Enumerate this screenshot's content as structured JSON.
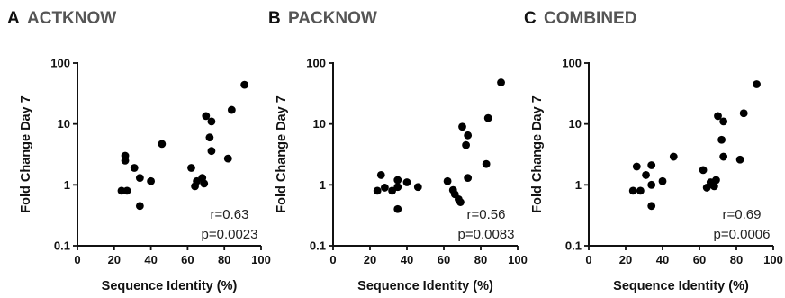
{
  "chart_data": [
    {
      "type": "scatter",
      "letter": "A",
      "title": "ACTKNOW",
      "xlabel": "Sequence Identity (%)",
      "ylabel": "Fold Change Day 7",
      "xlim": [
        0,
        100
      ],
      "ylim": [
        0.1,
        100
      ],
      "yscale": "log",
      "xticks": [
        "0",
        "20",
        "40",
        "60",
        "80",
        "100"
      ],
      "yticks": [
        "0.1",
        "1",
        "10",
        "100"
      ],
      "annotation": {
        "r": "r=0.63",
        "p": "p=0.0023"
      },
      "grid": false,
      "points": [
        {
          "x": 24,
          "y": 0.8
        },
        {
          "x": 27,
          "y": 0.8
        },
        {
          "x": 26,
          "y": 2.5
        },
        {
          "x": 26,
          "y": 3.0
        },
        {
          "x": 31,
          "y": 1.9
        },
        {
          "x": 34,
          "y": 1.3
        },
        {
          "x": 34,
          "y": 0.45
        },
        {
          "x": 40,
          "y": 1.15
        },
        {
          "x": 46,
          "y": 4.7
        },
        {
          "x": 62,
          "y": 1.9
        },
        {
          "x": 64,
          "y": 0.95
        },
        {
          "x": 65,
          "y": 1.15
        },
        {
          "x": 68,
          "y": 1.3
        },
        {
          "x": 69,
          "y": 1.05
        },
        {
          "x": 70,
          "y": 13.5
        },
        {
          "x": 72,
          "y": 6.0
        },
        {
          "x": 73,
          "y": 11.0
        },
        {
          "x": 73,
          "y": 3.6
        },
        {
          "x": 82,
          "y": 2.7
        },
        {
          "x": 84,
          "y": 17.0
        },
        {
          "x": 91,
          "y": 44.0
        }
      ]
    },
    {
      "type": "scatter",
      "letter": "B",
      "title": "PACKNOW",
      "xlabel": "Sequence Identity (%)",
      "ylabel": "Fold Change Day 7",
      "xlim": [
        0,
        100
      ],
      "ylim": [
        0.1,
        100
      ],
      "yscale": "log",
      "xticks": [
        "0",
        "20",
        "40",
        "60",
        "80",
        "100"
      ],
      "yticks": [
        "0.1",
        "1",
        "10",
        "100"
      ],
      "annotation": {
        "r": "r=0.56",
        "p": "p=0.0083"
      },
      "grid": false,
      "points": [
        {
          "x": 24,
          "y": 0.8
        },
        {
          "x": 26,
          "y": 1.45
        },
        {
          "x": 28,
          "y": 0.9
        },
        {
          "x": 32,
          "y": 0.8
        },
        {
          "x": 35,
          "y": 1.2
        },
        {
          "x": 35,
          "y": 0.92
        },
        {
          "x": 35,
          "y": 0.4
        },
        {
          "x": 40,
          "y": 1.1
        },
        {
          "x": 46,
          "y": 0.92
        },
        {
          "x": 62,
          "y": 1.15
        },
        {
          "x": 65,
          "y": 0.82
        },
        {
          "x": 66,
          "y": 0.7
        },
        {
          "x": 68,
          "y": 0.58
        },
        {
          "x": 69,
          "y": 0.52
        },
        {
          "x": 70,
          "y": 9.0
        },
        {
          "x": 72,
          "y": 4.5
        },
        {
          "x": 73,
          "y": 6.5
        },
        {
          "x": 73,
          "y": 1.3
        },
        {
          "x": 83,
          "y": 2.2
        },
        {
          "x": 84,
          "y": 12.5
        },
        {
          "x": 91,
          "y": 48.0
        }
      ]
    },
    {
      "type": "scatter",
      "letter": "C",
      "title": "COMBINED",
      "xlabel": "Sequence Identity (%)",
      "ylabel": "Fold Change Day 7",
      "xlim": [
        0,
        100
      ],
      "ylim": [
        0.1,
        100
      ],
      "yscale": "log",
      "xticks": [
        "0",
        "20",
        "40",
        "60",
        "80",
        "100"
      ],
      "yticks": [
        "0.1",
        "1",
        "10",
        "100"
      ],
      "annotation": {
        "r": "r=0.69",
        "p": "p=0.0006"
      },
      "grid": false,
      "points": [
        {
          "x": 24,
          "y": 0.8
        },
        {
          "x": 26,
          "y": 2.0
        },
        {
          "x": 28,
          "y": 0.8
        },
        {
          "x": 31,
          "y": 1.45
        },
        {
          "x": 34,
          "y": 2.1
        },
        {
          "x": 34,
          "y": 1.0
        },
        {
          "x": 34,
          "y": 0.45
        },
        {
          "x": 40,
          "y": 1.15
        },
        {
          "x": 46,
          "y": 2.9
        },
        {
          "x": 62,
          "y": 1.75
        },
        {
          "x": 64,
          "y": 0.9
        },
        {
          "x": 66,
          "y": 1.1
        },
        {
          "x": 68,
          "y": 0.95
        },
        {
          "x": 69,
          "y": 1.2
        },
        {
          "x": 70,
          "y": 13.5
        },
        {
          "x": 72,
          "y": 5.5
        },
        {
          "x": 73,
          "y": 11.0
        },
        {
          "x": 73,
          "y": 2.9
        },
        {
          "x": 82,
          "y": 2.6
        },
        {
          "x": 84,
          "y": 15.0
        },
        {
          "x": 91,
          "y": 45.0
        }
      ]
    }
  ]
}
